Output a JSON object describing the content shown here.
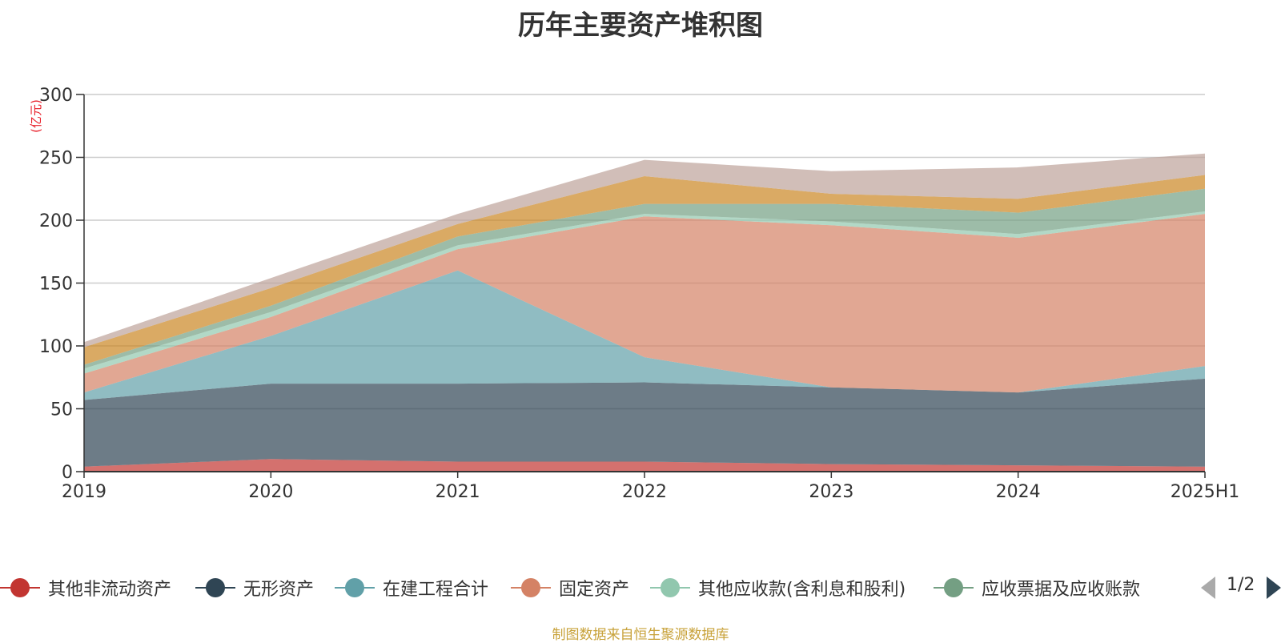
{
  "chart_data": {
    "type": "area",
    "title": "历年主要资产堆积图",
    "unit": "(亿元)",
    "categories": [
      "2019",
      "2020",
      "2021",
      "2022",
      "2023",
      "2024",
      "2025H1"
    ],
    "ylim": [
      0,
      300
    ],
    "yticks": [
      0,
      50,
      100,
      150,
      200,
      250,
      300
    ],
    "grid": true,
    "legend_position": "bottom",
    "stacked": true,
    "series": [
      {
        "name": "其他非流动资产",
        "color": "#c23531",
        "values": [
          4,
          10,
          8,
          8,
          6,
          5,
          4
        ]
      },
      {
        "name": "无形资产",
        "color": "#2f4554",
        "values": [
          53,
          60,
          62,
          63,
          61,
          58,
          70
        ]
      },
      {
        "name": "在建工程合计",
        "color": "#61a0a8",
        "values": [
          6,
          38,
          90,
          20,
          0,
          0,
          10
        ]
      },
      {
        "name": "固定资产",
        "color": "#d48265",
        "values": [
          15,
          15,
          17,
          112,
          129,
          123,
          121
        ]
      },
      {
        "name": "其他应收款(含利息和股利)",
        "color": "#91c7ae",
        "values": [
          4,
          4,
          3,
          2,
          3,
          3,
          2
        ]
      },
      {
        "name": "应收票据及应收账款",
        "color": "#749f83",
        "values": [
          3,
          5,
          7,
          8,
          14,
          17,
          18
        ]
      },
      {
        "name": "",
        "color": "#ca8622",
        "values": [
          14,
          14,
          10,
          22,
          8,
          11,
          11
        ]
      },
      {
        "name": "",
        "color": "#bda29a",
        "values": [
          4,
          8,
          8,
          13,
          18,
          25,
          17
        ]
      }
    ]
  },
  "legend": {
    "items": [
      "其他非流动资产",
      "无形资产",
      "在建工程合计",
      "固定资产",
      "其他应收款(含利息和股利)",
      "应收票据及应收账款"
    ],
    "page": "1/2"
  },
  "source_note": "制图数据来自恒生聚源数据库"
}
